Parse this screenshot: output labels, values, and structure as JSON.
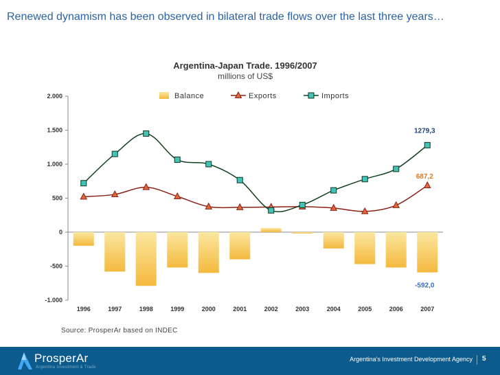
{
  "slide": {
    "headline": "Renewed dynamism has been observed in bilateral trade flows over the last three years…",
    "source": "Source: ProsperAr based on INDEC"
  },
  "footer": {
    "logo_text": "ProsperAr",
    "logo_tagline": "Argentina Investment & Trade",
    "agency": "Argentina’s Investment Development Agency",
    "page_number": "5",
    "background_color": "#0d5b8c"
  },
  "chart_data": {
    "type": "bar+line",
    "title": "Argentina-Japan Trade. 1996/2007",
    "subtitle": "millions of US$",
    "categories": [
      "1996",
      "1997",
      "1998",
      "1999",
      "2000",
      "2001",
      "2002",
      "2003",
      "2004",
      "2005",
      "2006",
      "2007"
    ],
    "ylim": [
      -1000,
      2000
    ],
    "yticks": [
      2000,
      1500,
      1000,
      500,
      0,
      -500,
      -1000
    ],
    "ytick_labels": [
      "2.000",
      "1.500",
      "1.000",
      "500",
      "0",
      "-500",
      "-1.000"
    ],
    "grid": false,
    "legend_position": "top",
    "series": [
      {
        "name": "Balance",
        "kind": "bar",
        "color": "#f6c75a",
        "values": [
          -200,
          -580,
          -790,
          -520,
          -600,
          -400,
          60,
          -20,
          -240,
          -470,
          -520,
          -592
        ]
      },
      {
        "name": "Exports",
        "kind": "line",
        "marker": "triangle",
        "color": "#8b2015",
        "marker_color": "#e0683a",
        "values": [
          520,
          555,
          660,
          525,
          375,
          365,
          370,
          375,
          355,
          305,
          395,
          687.2
        ]
      },
      {
        "name": "Imports",
        "kind": "line",
        "marker": "square",
        "color": "#12401f",
        "marker_color": "#3fc4b6",
        "values": [
          720,
          1150,
          1450,
          1065,
          1000,
          765,
          320,
          400,
          615,
          780,
          930,
          1279.3
        ]
      }
    ],
    "annotations": [
      {
        "series": "Imports",
        "index": 11,
        "text": "1279,3",
        "color": "#1f3f7a"
      },
      {
        "series": "Exports",
        "index": 11,
        "text": "687,2",
        "color": "#e07a20"
      },
      {
        "series": "Balance",
        "index": 11,
        "text": "-592,0",
        "color": "#3a6dbf"
      }
    ]
  }
}
